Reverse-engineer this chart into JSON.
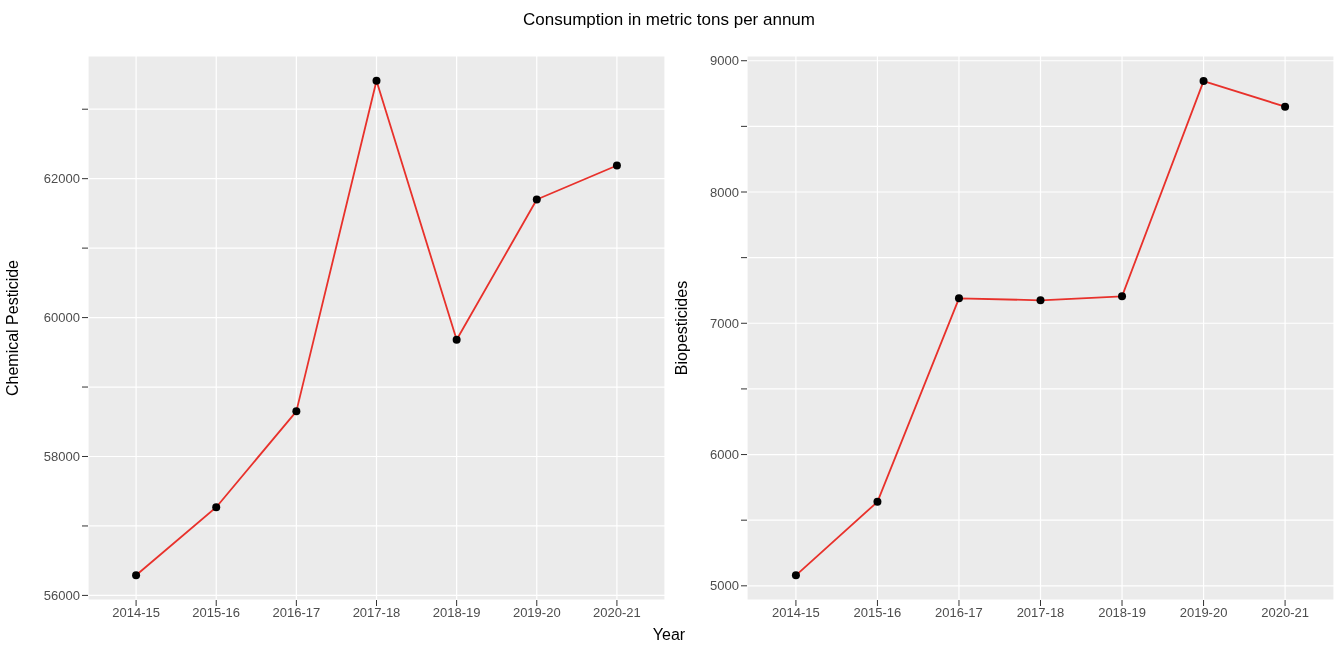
{
  "chart_data": [
    {
      "type": "line",
      "title": "Consumption in metric tons per annum",
      "xlabel": "Year",
      "ylabel": "Chemical Pesticide",
      "categories": [
        "2014-15",
        "2015-16",
        "2016-17",
        "2017-18",
        "2018-19",
        "2019-20",
        "2020-21"
      ],
      "series": [
        {
          "color": "#e8312b",
          "values": [
            56290,
            57270,
            58650,
            63410,
            59680,
            61700,
            62190
          ]
        }
      ],
      "ylim": [
        55934,
        63766
      ],
      "yticks": [
        56000,
        {
          "value": 57000,
          "label": null
        },
        58000,
        {
          "value": 59000,
          "label": null
        },
        60000,
        {
          "value": 61000,
          "label": null
        },
        62000,
        {
          "value": 63000,
          "label": null
        }
      ],
      "grid": true,
      "marker": "circle",
      "legend": false
    },
    {
      "type": "line",
      "ylabel": "Biopesticides",
      "categories": [
        "2014-15",
        "2015-16",
        "2016-17",
        "2017-18",
        "2018-19",
        "2019-20",
        "2020-21"
      ],
      "series": [
        {
          "color": "#e8312b",
          "values": [
            5080,
            5640,
            7190,
            7175,
            7205,
            8845,
            8650
          ]
        }
      ],
      "ylim": [
        4892,
        9036
      ],
      "yticks": [
        5000,
        {
          "value": 5500,
          "label": null
        },
        6000,
        {
          "value": 6500,
          "label": null
        },
        7000,
        {
          "value": 7500,
          "label": null
        },
        8000,
        {
          "value": 8500,
          "label": null
        },
        9000
      ],
      "grid": true,
      "marker": "circle",
      "legend": false
    }
  ]
}
